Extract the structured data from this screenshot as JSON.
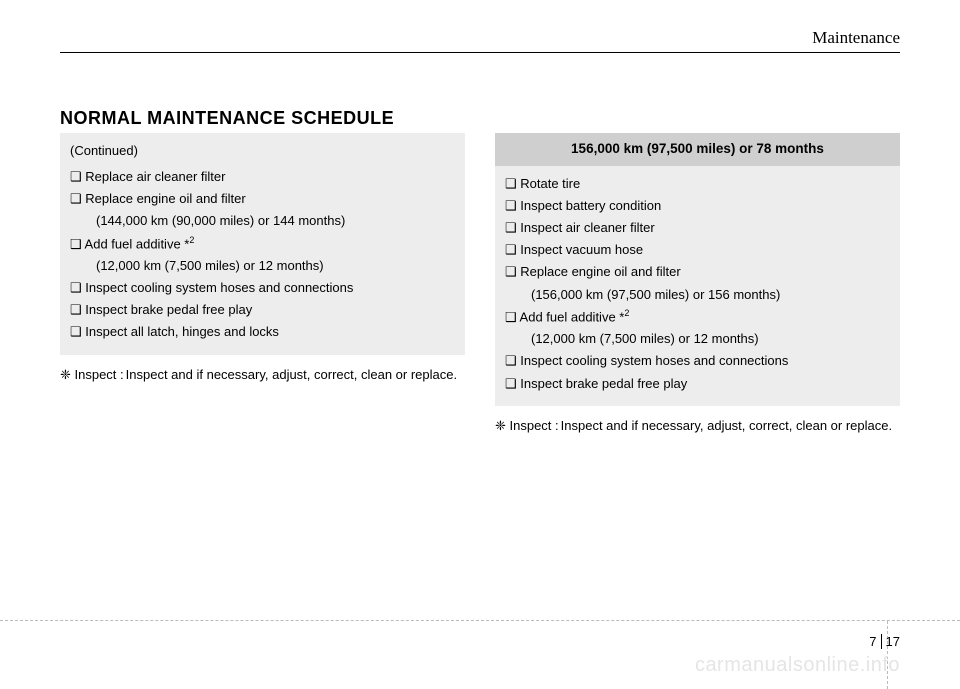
{
  "section_title": "Maintenance",
  "main_title": "NORMAL MAINTENANCE SCHEDULE",
  "left": {
    "continued": "(Continued)",
    "items": [
      {
        "text": "Replace air cleaner filter"
      },
      {
        "text": "Replace engine oil and filter",
        "sub": "(144,000 km (90,000 miles) or 144 months)"
      },
      {
        "text": "Add fuel additive *",
        "sup": "2",
        "sub": "(12,000 km (7,500 miles) or 12 months)"
      },
      {
        "text": "Inspect cooling system hoses and connections"
      },
      {
        "text": "Inspect brake pedal free play"
      },
      {
        "text": "Inspect all latch, hinges and locks"
      }
    ],
    "note_lead": "❈ Inspect :",
    "note_body": "Inspect and if necessary, adjust, correct, clean or replace."
  },
  "right": {
    "header": "156,000 km (97,500 miles) or 78 months",
    "items": [
      {
        "text": "Rotate tire"
      },
      {
        "text": "Inspect battery condition"
      },
      {
        "text": "Inspect air cleaner filter"
      },
      {
        "text": "Inspect vacuum hose"
      },
      {
        "text": "Replace engine oil and filter",
        "sub": "(156,000 km (97,500 miles) or 156 months)"
      },
      {
        "text": "Add fuel additive *",
        "sup": "2",
        "sub": "(12,000 km (7,500 miles) or 12 months)"
      },
      {
        "text": "Inspect cooling system hoses and connections"
      },
      {
        "text": "Inspect brake pedal free play"
      }
    ],
    "note_lead": "❈ Inspect :",
    "note_body": "Inspect and if necessary, adjust, correct, clean or replace."
  },
  "footer": {
    "chapter": "7",
    "page": "17"
  },
  "watermark": "carmanualsonline.info",
  "bullet": "❑",
  "colors": {
    "box_bg": "#ededed",
    "header_bg": "#cfcfcf",
    "watermark": "#e5e5e5",
    "dash": "#bbbbbb"
  }
}
